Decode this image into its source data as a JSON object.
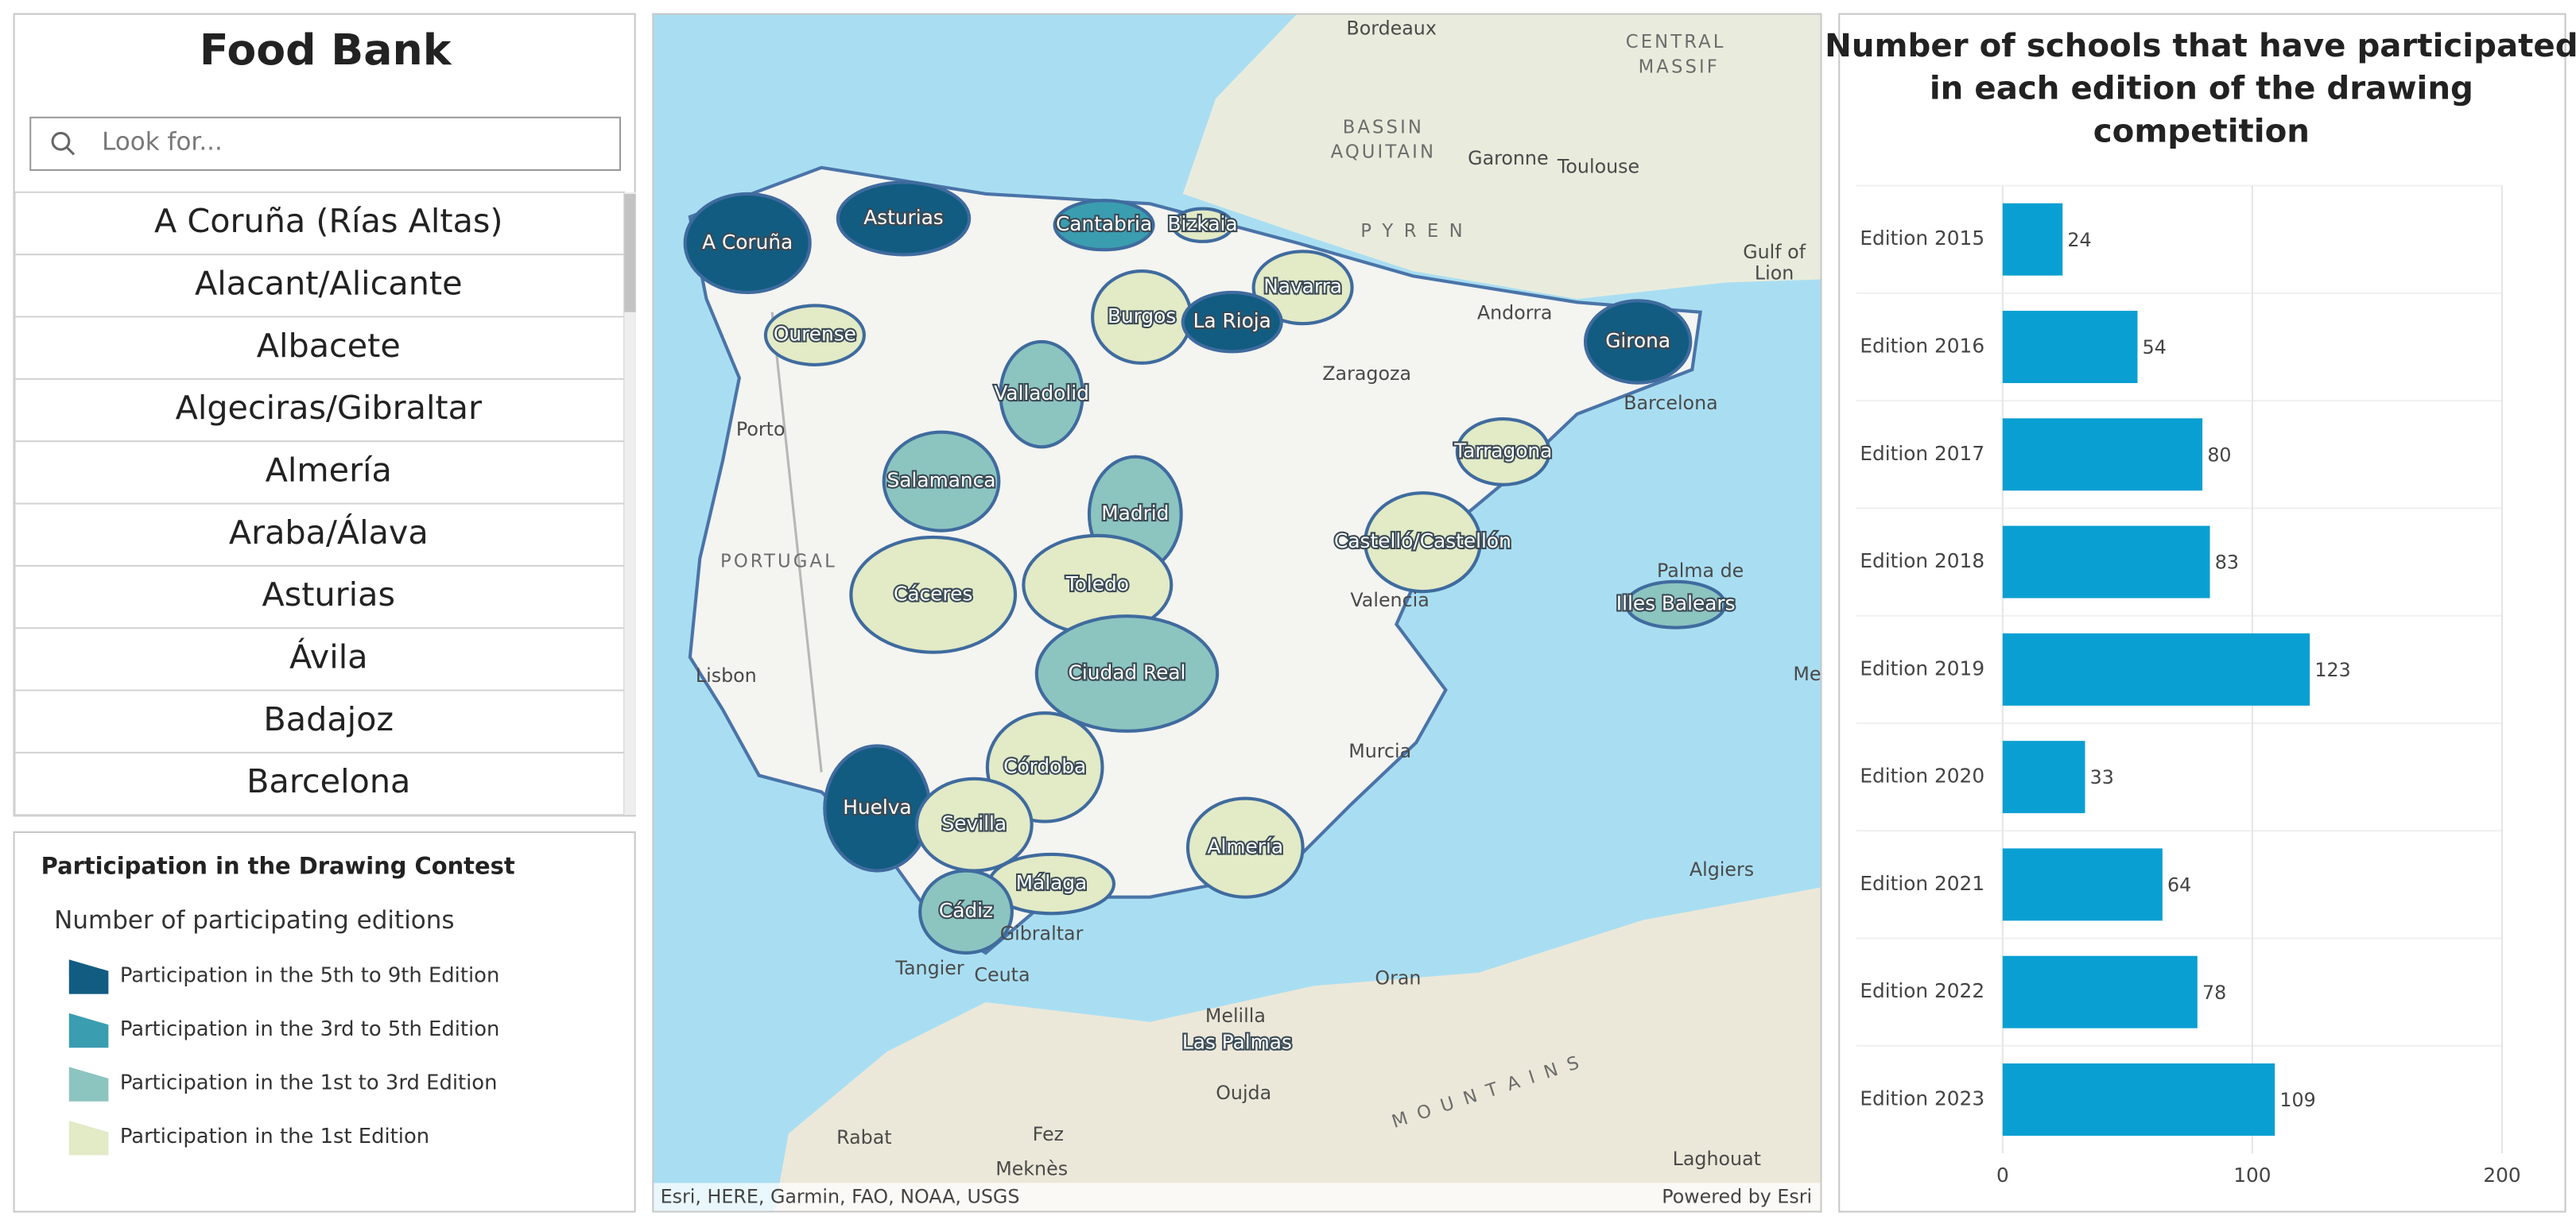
{
  "sidebar": {
    "title": "Food Bank",
    "search_placeholder": "Look for...",
    "items": [
      "A Coruña (Rías Altas)",
      "Alacant/Alicante",
      "Albacete",
      "Algeciras/Gibraltar",
      "Almería",
      "Araba/Álava",
      "Asturias",
      "Ávila",
      "Badajoz",
      "Barcelona"
    ]
  },
  "legend": {
    "title": "Participation in the Drawing Contest",
    "subtitle": "Number of participating editions",
    "items": [
      {
        "label": "Participation in the 5th to 9th Edition",
        "color": "#125c82"
      },
      {
        "label": "Participation in the 3rd to 5th Edition",
        "color": "#3a9db0"
      },
      {
        "label": "Participation in the 1st to 3rd Edition",
        "color": "#8cc4c0"
      },
      {
        "label": "Participation in the 1st Edition",
        "color": "#e2eac6"
      }
    ]
  },
  "map": {
    "provinces": [
      "A Coruña",
      "Asturias",
      "Cantabria",
      "Bizkaia",
      "Navarra",
      "Burgos",
      "La Rioja",
      "Girona",
      "Ourense",
      "Valladolid",
      "Salamanca",
      "Madrid",
      "Tarragona",
      "Castelló/Castellón",
      "Cáceres",
      "Toledo",
      "Illes Balears",
      "Ciudad Real",
      "Córdoba",
      "Huelva",
      "Sevilla",
      "Almería",
      "Málaga",
      "Cádiz",
      "Las Palmas"
    ],
    "places": [
      "Bordeaux",
      "CENTRAL",
      "MASSIF",
      "Garonne",
      "BASSIN",
      "AQUITAIN",
      "Toulouse",
      "P Y R E N",
      "Gulf of",
      "Lion",
      "Andorra",
      "Barcelona",
      "Zaragoza",
      "Porto",
      "PORTUGAL",
      "Lisbon",
      "Valencia",
      "Palma de",
      "Murcia",
      "Algiers",
      "Oran",
      "Tangier",
      "Rabat",
      "Fez",
      "Meknès",
      "Melilla",
      "M O U N T A I N S",
      "Oujda",
      "Laghouat",
      "Gibraltar",
      "Ceuta",
      "Me"
    ],
    "attribution": "Esri, HERE, Garmin, FAO, NOAA, USGS",
    "powered_by": "Powered by Esri"
  },
  "chart_data": {
    "type": "hbar",
    "title": "Number of schools that have participated in each edition of the drawing competition",
    "categories": [
      "Edition 2015",
      "Edition 2016",
      "Edition 2017",
      "Edition 2018",
      "Edition 2019",
      "Edition 2020",
      "Edition 2021",
      "Edition 2022",
      "Edition 2023"
    ],
    "values": [
      24,
      54,
      80,
      83,
      123,
      33,
      64,
      78,
      109
    ],
    "color": "#0a9fd2",
    "xlim": [
      0,
      200
    ],
    "xticks": [
      0,
      100,
      200
    ],
    "grid": true
  }
}
